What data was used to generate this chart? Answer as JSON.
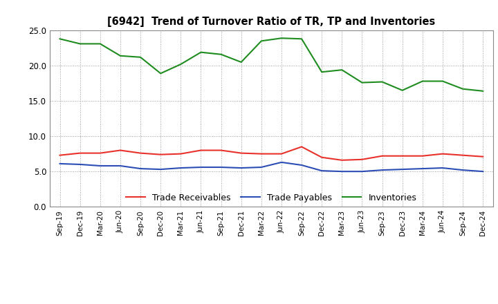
{
  "title": "[6942]  Trend of Turnover Ratio of TR, TP and Inventories",
  "x_labels": [
    "Sep-19",
    "Dec-19",
    "Mar-20",
    "Jun-20",
    "Sep-20",
    "Dec-20",
    "Mar-21",
    "Jun-21",
    "Sep-21",
    "Dec-21",
    "Mar-22",
    "Jun-22",
    "Sep-22",
    "Dec-22",
    "Mar-23",
    "Jun-23",
    "Sep-23",
    "Dec-23",
    "Mar-24",
    "Jun-24",
    "Sep-24",
    "Dec-24"
  ],
  "trade_receivables": [
    7.3,
    7.6,
    7.6,
    8.0,
    7.6,
    7.4,
    7.5,
    8.0,
    8.0,
    7.6,
    7.5,
    7.5,
    8.5,
    7.0,
    6.6,
    6.7,
    7.2,
    7.2,
    7.2,
    7.5,
    7.3,
    7.1
  ],
  "trade_payables": [
    6.1,
    6.0,
    5.8,
    5.8,
    5.4,
    5.3,
    5.5,
    5.6,
    5.6,
    5.5,
    5.6,
    6.3,
    5.9,
    5.1,
    5.0,
    5.0,
    5.2,
    5.3,
    5.4,
    5.5,
    5.2,
    5.0
  ],
  "inventories": [
    23.8,
    23.1,
    23.1,
    21.4,
    21.2,
    18.9,
    20.2,
    21.9,
    21.6,
    20.5,
    23.5,
    23.9,
    23.8,
    19.1,
    19.4,
    17.6,
    17.7,
    16.5,
    17.8,
    17.8,
    16.7,
    16.4
  ],
  "tr_color": "#e8312a",
  "tp_color": "#2b4db5",
  "inv_color": "#1f8c1f",
  "ylim": [
    0,
    25
  ],
  "yticks": [
    0.0,
    5.0,
    10.0,
    15.0,
    20.0,
    25.0
  ],
  "background_color": "#ffffff",
  "grid_color": "#999999",
  "legend_labels": [
    "Trade Receivables",
    "Trade Payables",
    "Inventories"
  ]
}
